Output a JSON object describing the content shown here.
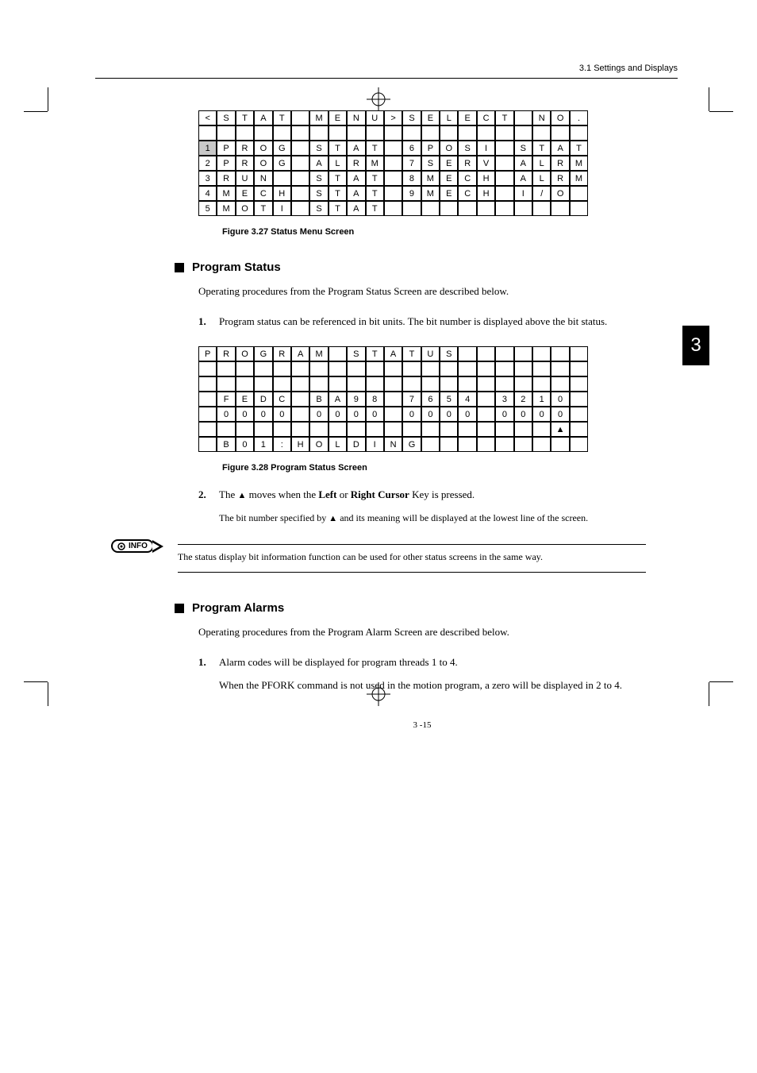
{
  "header": {
    "text": "3.1  Settings and Displays"
  },
  "chapter_tab": "3",
  "table1": {
    "rows": [
      [
        "<",
        "S",
        "T",
        "A",
        "T",
        "",
        "M",
        "E",
        "N",
        "U",
        ">",
        "S",
        "E",
        "L",
        "E",
        "C",
        "T",
        "",
        "N",
        "O",
        "."
      ],
      [
        "",
        "",
        "",
        "",
        "",
        "",
        "",
        "",
        "",
        "",
        "",
        "",
        "",
        "",
        "",
        "",
        "",
        "",
        "",
        "",
        ""
      ],
      [
        "1",
        "P",
        "R",
        "O",
        "G",
        "",
        "S",
        "T",
        "A",
        "T",
        "",
        "6",
        "P",
        "O",
        "S",
        "I",
        "",
        "S",
        "T",
        "A",
        "T"
      ],
      [
        "2",
        "P",
        "R",
        "O",
        "G",
        "",
        "A",
        "L",
        "R",
        "M",
        "",
        "7",
        "S",
        "E",
        "R",
        "V",
        "",
        "A",
        "L",
        "R",
        "M"
      ],
      [
        "3",
        "R",
        "U",
        "N",
        "",
        "",
        "S",
        "T",
        "A",
        "T",
        "",
        "8",
        "M",
        "E",
        "C",
        "H",
        "",
        "A",
        "L",
        "R",
        "M"
      ],
      [
        "4",
        "M",
        "E",
        "C",
        "H",
        "",
        "S",
        "T",
        "A",
        "T",
        "",
        "9",
        "M",
        "E",
        "C",
        "H",
        "",
        "I",
        "/",
        "O",
        ""
      ],
      [
        "5",
        "M",
        "O",
        "T",
        "I",
        "",
        "S",
        "T",
        "A",
        "T",
        "",
        "",
        "",
        "",
        "",
        "",
        "",
        "",
        "",
        "",
        ""
      ]
    ],
    "shaded": [
      [
        2,
        0
      ]
    ]
  },
  "caption1": "Figure 3.27  Status Menu Screen",
  "section1": {
    "title": "Program Status",
    "intro": "Operating procedures from the Program Status Screen are described below.",
    "item1_num": "1.",
    "item1_text": "Program status can be referenced in bit units. The bit number is displayed above the bit status."
  },
  "table2": {
    "rows": [
      [
        "P",
        "R",
        "O",
        "G",
        "R",
        "A",
        "M",
        "",
        "S",
        "T",
        "A",
        "T",
        "U",
        "S",
        "",
        "",
        "",
        "",
        "",
        "",
        ""
      ],
      [
        "",
        "",
        "",
        "",
        "",
        "",
        "",
        "",
        "",
        "",
        "",
        "",
        "",
        "",
        "",
        "",
        "",
        "",
        "",
        "",
        ""
      ],
      [
        "",
        "",
        "",
        "",
        "",
        "",
        "",
        "",
        "",
        "",
        "",
        "",
        "",
        "",
        "",
        "",
        "",
        "",
        "",
        "",
        ""
      ],
      [
        "",
        "F",
        "E",
        "D",
        "C",
        "",
        "B",
        "A",
        "9",
        "8",
        "",
        "7",
        "6",
        "5",
        "4",
        "",
        "3",
        "2",
        "1",
        "0",
        ""
      ],
      [
        "",
        "0",
        "0",
        "0",
        "0",
        "",
        "0",
        "0",
        "0",
        "0",
        "",
        "0",
        "0",
        "0",
        "0",
        "",
        "0",
        "0",
        "0",
        "0",
        ""
      ],
      [
        "",
        "",
        "",
        "",
        "",
        "",
        "",
        "",
        "",
        "",
        "",
        "",
        "",
        "",
        "",
        "",
        "",
        "",
        "",
        "▲",
        ""
      ],
      [
        "",
        "B",
        "0",
        "1",
        ":",
        "H",
        "O",
        "L",
        "D",
        "I",
        "N",
        "G",
        "",
        "",
        "",
        "",
        "",
        "",
        "",
        "",
        ""
      ]
    ]
  },
  "caption2": "Figure 3.28  Program Status Screen",
  "item2": {
    "num": "2.",
    "pre": "The ",
    "tri": "▲",
    "mid": " moves when the ",
    "b1": "Left",
    "or": " or ",
    "b2": "Right Cursor",
    "post": " Key is pressed."
  },
  "sub2": {
    "pre": "The bit number specified by ",
    "tri": "▲",
    "post": " and its meaning will be displayed at the lowest line of the screen."
  },
  "info": {
    "label": "INFO",
    "text": "The status display bit information function can be used for other status screens in the same way."
  },
  "section2": {
    "title": "Program Alarms",
    "intro": "Operating procedures from the Program Alarm Screen are described below.",
    "item1_num": "1.",
    "item1_text": "Alarm codes will be displayed for program threads 1 to 4.",
    "item1_sub": "When the PFORK command is not used in the motion program, a zero will be displayed in 2 to 4."
  },
  "page_num": "3 -15"
}
